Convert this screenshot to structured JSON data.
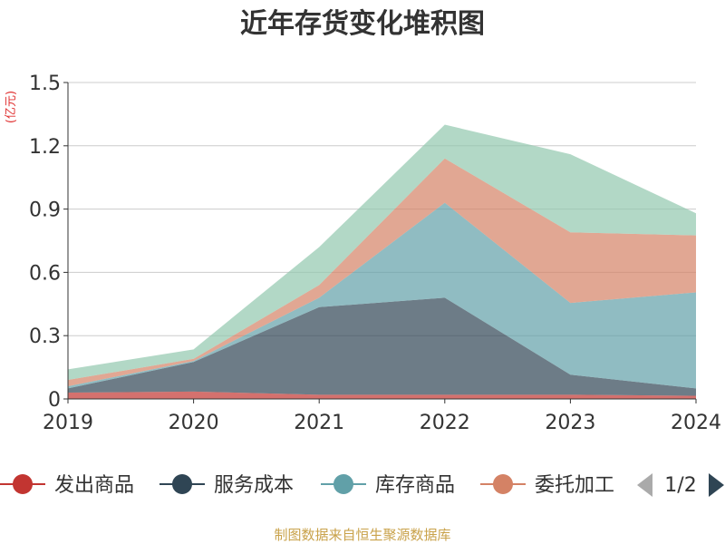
{
  "chart_data": {
    "type": "area",
    "stacked": true,
    "title": "近年存货变化堆积图",
    "ylabel": "(亿元)",
    "x": [
      "2019",
      "2020",
      "2021",
      "2022",
      "2023",
      "2024"
    ],
    "ylim": [
      0,
      1.5
    ],
    "yticks": [
      "1.5",
      "1.2",
      "0.9",
      "0.6",
      "0.3",
      "0"
    ],
    "grid": true,
    "series": [
      {
        "name": "发出商品",
        "color": "#c23531",
        "values": [
          0.03,
          0.035,
          0.02,
          0.02,
          0.02,
          0.015
        ]
      },
      {
        "name": "服务成本",
        "color": "#2f4554",
        "values": [
          0.02,
          0.14,
          0.415,
          0.46,
          0.095,
          0.035
        ]
      },
      {
        "name": "库存商品",
        "color": "#61a0a8",
        "values": [
          0.01,
          0.005,
          0.045,
          0.45,
          0.34,
          0.455
        ]
      },
      {
        "name": "委托加工",
        "color": "#d48265",
        "values": [
          0.03,
          0.01,
          0.06,
          0.21,
          0.335,
          0.27
        ]
      },
      {
        "name": "",
        "color": "#91c7ae",
        "values": [
          0.05,
          0.045,
          0.18,
          0.16,
          0.37,
          0.105
        ]
      }
    ]
  },
  "legend": {
    "items": [
      "发出商品",
      "服务成本",
      "库存商品",
      "委托加工"
    ],
    "page": "1/2"
  },
  "source": "制图数据来自恒生聚源数据库"
}
